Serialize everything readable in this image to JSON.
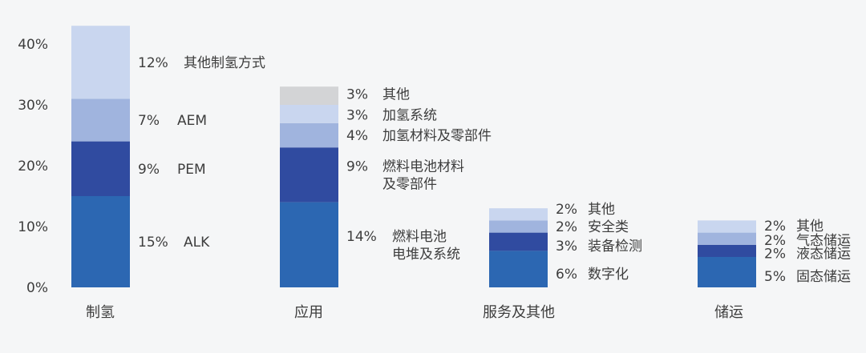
{
  "chart_data": {
    "type": "bar",
    "stacked": true,
    "title": "",
    "xlabel": "",
    "ylabel": "",
    "ylim": [
      0,
      45
    ],
    "yticks": [
      "0%",
      "10%",
      "20%",
      "30%",
      "40%"
    ],
    "grid": false,
    "categories": [
      "制氢",
      "应用",
      "服务及其他",
      "储运"
    ],
    "stacks": [
      {
        "category": "制氢",
        "segments": [
          {
            "value": 15,
            "label": "15%",
            "name": [
              "ALK"
            ],
            "color": "#2c67b2"
          },
          {
            "value": 9,
            "label": "9%",
            "name": [
              "PEM"
            ],
            "color": "#304ba0"
          },
          {
            "value": 7,
            "label": "7%",
            "name": [
              "AEM"
            ],
            "color": "#a0b4de"
          },
          {
            "value": 12,
            "label": "12%",
            "name": [
              "其他制氢方式"
            ],
            "color": "#c9d6ef"
          }
        ]
      },
      {
        "category": "应用",
        "segments": [
          {
            "value": 14,
            "label": "14%",
            "name": [
              "燃料电池",
              "电堆及系统"
            ],
            "color": "#2c67b2"
          },
          {
            "value": 9,
            "label": "9%",
            "name": [
              "燃料电池材料",
              "及零部件"
            ],
            "color": "#304ba0"
          },
          {
            "value": 4,
            "label": "4%",
            "name": [
              "加氢材料及零部件"
            ],
            "color": "#a0b4de"
          },
          {
            "value": 3,
            "label": "3%",
            "name": [
              "加氢系统"
            ],
            "color": "#c9d6ef"
          },
          {
            "value": 3,
            "label": "3%",
            "name": [
              "其他"
            ],
            "color": "#d3d4d6"
          }
        ]
      },
      {
        "category": "服务及其他",
        "segments": [
          {
            "value": 6,
            "label": "6%",
            "name": [
              "数字化"
            ],
            "color": "#2c67b2"
          },
          {
            "value": 3,
            "label": "3%",
            "name": [
              "装备检测"
            ],
            "color": "#304ba0"
          },
          {
            "value": 2,
            "label": "2%",
            "name": [
              "安全类"
            ],
            "color": "#a0b4de"
          },
          {
            "value": 2,
            "label": "2%",
            "name": [
              "其他"
            ],
            "color": "#c9d6ef"
          }
        ]
      },
      {
        "category": "储运",
        "segments": [
          {
            "value": 5,
            "label": "5%",
            "name": [
              "固态储运"
            ],
            "color": "#2c67b2"
          },
          {
            "value": 2,
            "label": "2%",
            "name": [
              "液态储运"
            ],
            "color": "#304ba0"
          },
          {
            "value": 2,
            "label": "2%",
            "name": [
              "气态储运"
            ],
            "color": "#a0b4de"
          },
          {
            "value": 2,
            "label": "2%",
            "name": [
              "其他"
            ],
            "color": "#c9d6ef"
          }
        ]
      }
    ]
  }
}
